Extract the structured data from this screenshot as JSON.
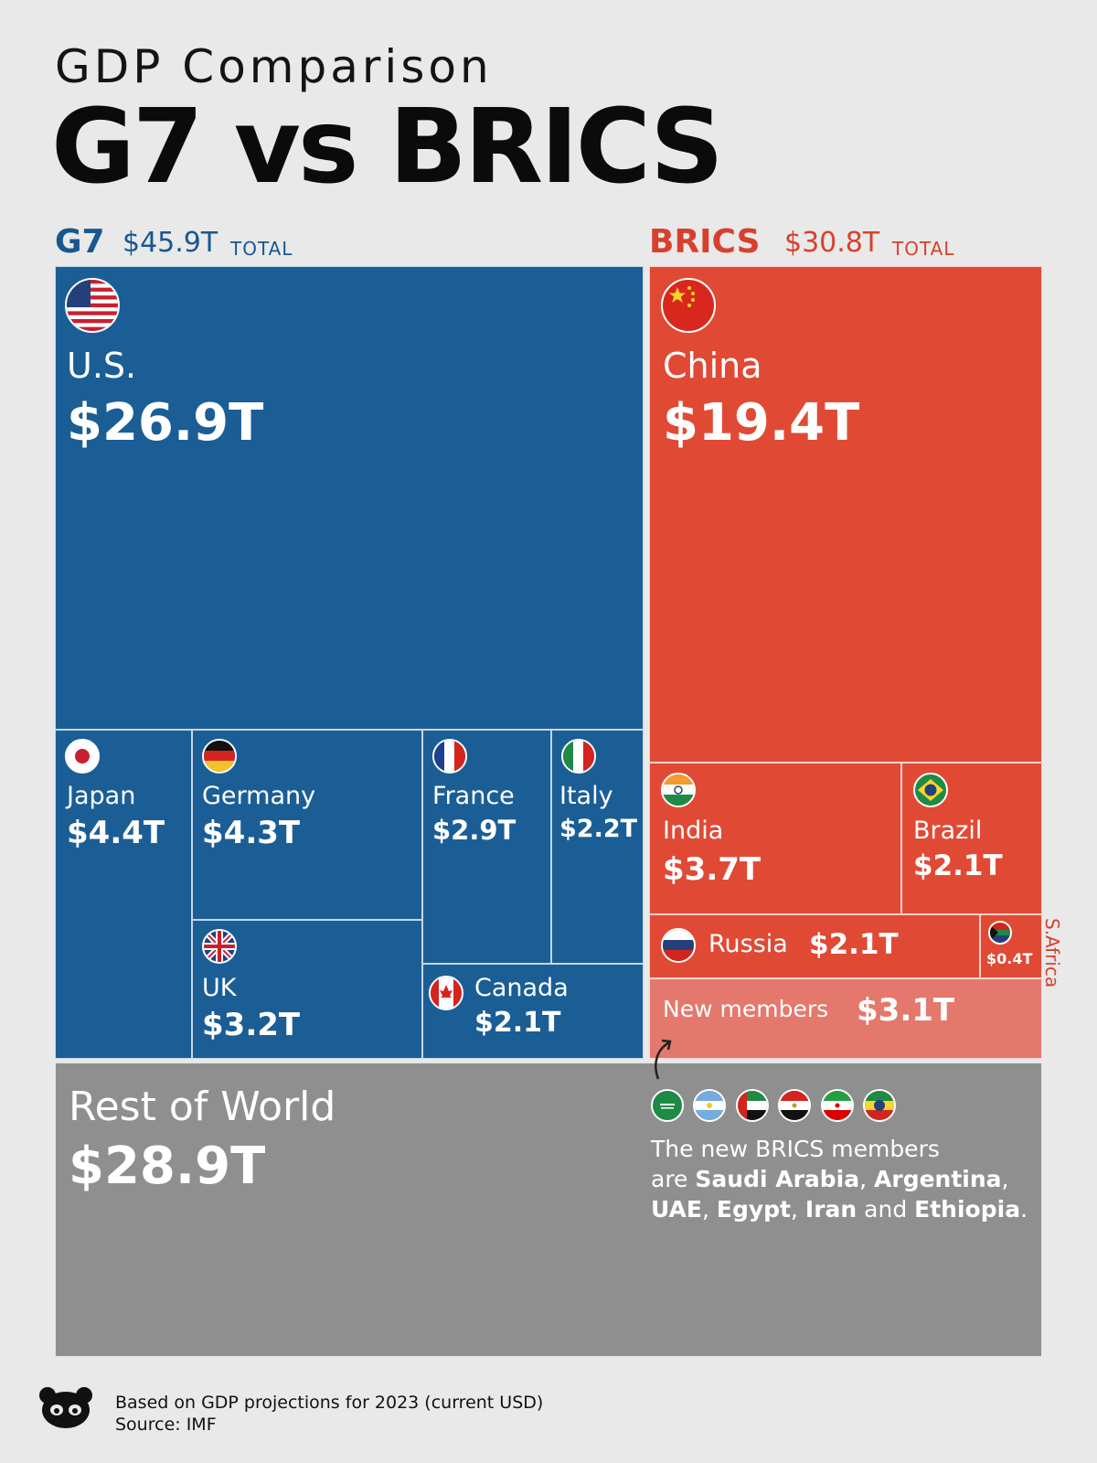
{
  "header": {
    "subtitle": "GDP Comparison",
    "title": "G7 vs BRICS"
  },
  "groups": {
    "g7": {
      "label": "G7",
      "total": "$45.9T",
      "total_word": "TOTAL",
      "color": "#1b5e96"
    },
    "brics": {
      "label": "BRICS",
      "total": "$30.8T",
      "total_word": "TOTAL",
      "color": "#e04a35"
    },
    "new_members": {
      "color": "#e4786c"
    },
    "rest": {
      "color": "#8f8f8f"
    }
  },
  "chart_data": {
    "type": "treemap",
    "title": "G7 vs BRICS",
    "subtitle": "GDP Comparison",
    "unit": "$ trillions (current USD, 2023 projections)",
    "groups": [
      {
        "name": "G7",
        "total": 45.9,
        "members": [
          {
            "name": "U.S.",
            "value": 26.9,
            "label": "$26.9T"
          },
          {
            "name": "Japan",
            "value": 4.4,
            "label": "$4.4T"
          },
          {
            "name": "Germany",
            "value": 4.3,
            "label": "$4.3T"
          },
          {
            "name": "UK",
            "value": 3.2,
            "label": "$3.2T"
          },
          {
            "name": "France",
            "value": 2.9,
            "label": "$2.9T"
          },
          {
            "name": "Italy",
            "value": 2.2,
            "label": "$2.2T"
          },
          {
            "name": "Canada",
            "value": 2.1,
            "label": "$2.1T"
          }
        ]
      },
      {
        "name": "BRICS",
        "total": 30.8,
        "members": [
          {
            "name": "China",
            "value": 19.4,
            "label": "$19.4T"
          },
          {
            "name": "India",
            "value": 3.7,
            "label": "$3.7T"
          },
          {
            "name": "Brazil",
            "value": 2.1,
            "label": "$2.1T"
          },
          {
            "name": "Russia",
            "value": 2.1,
            "label": "$2.1T"
          },
          {
            "name": "S.Africa",
            "value": 0.4,
            "label": "$0.4T"
          },
          {
            "name": "New members",
            "value": 3.1,
            "label": "$3.1T"
          }
        ]
      },
      {
        "name": "Rest of World",
        "value": 28.9,
        "label": "$28.9T"
      }
    ]
  },
  "new_members_note": {
    "line1": "The new BRICS members",
    "are": "are ",
    "m1": "Saudi Arabia",
    "sep1": ", ",
    "m2": "Argentina",
    "sep2": ",",
    "m3": "UAE",
    "sep3": ", ",
    "m4": "Egypt",
    "sep4": ", ",
    "m5": "Iran",
    "and": " and ",
    "m6": "Ethiopia",
    "end": "."
  },
  "footer": {
    "line1": "Based on GDP projections for 2023 (current USD)",
    "line2": "Source: IMF"
  }
}
